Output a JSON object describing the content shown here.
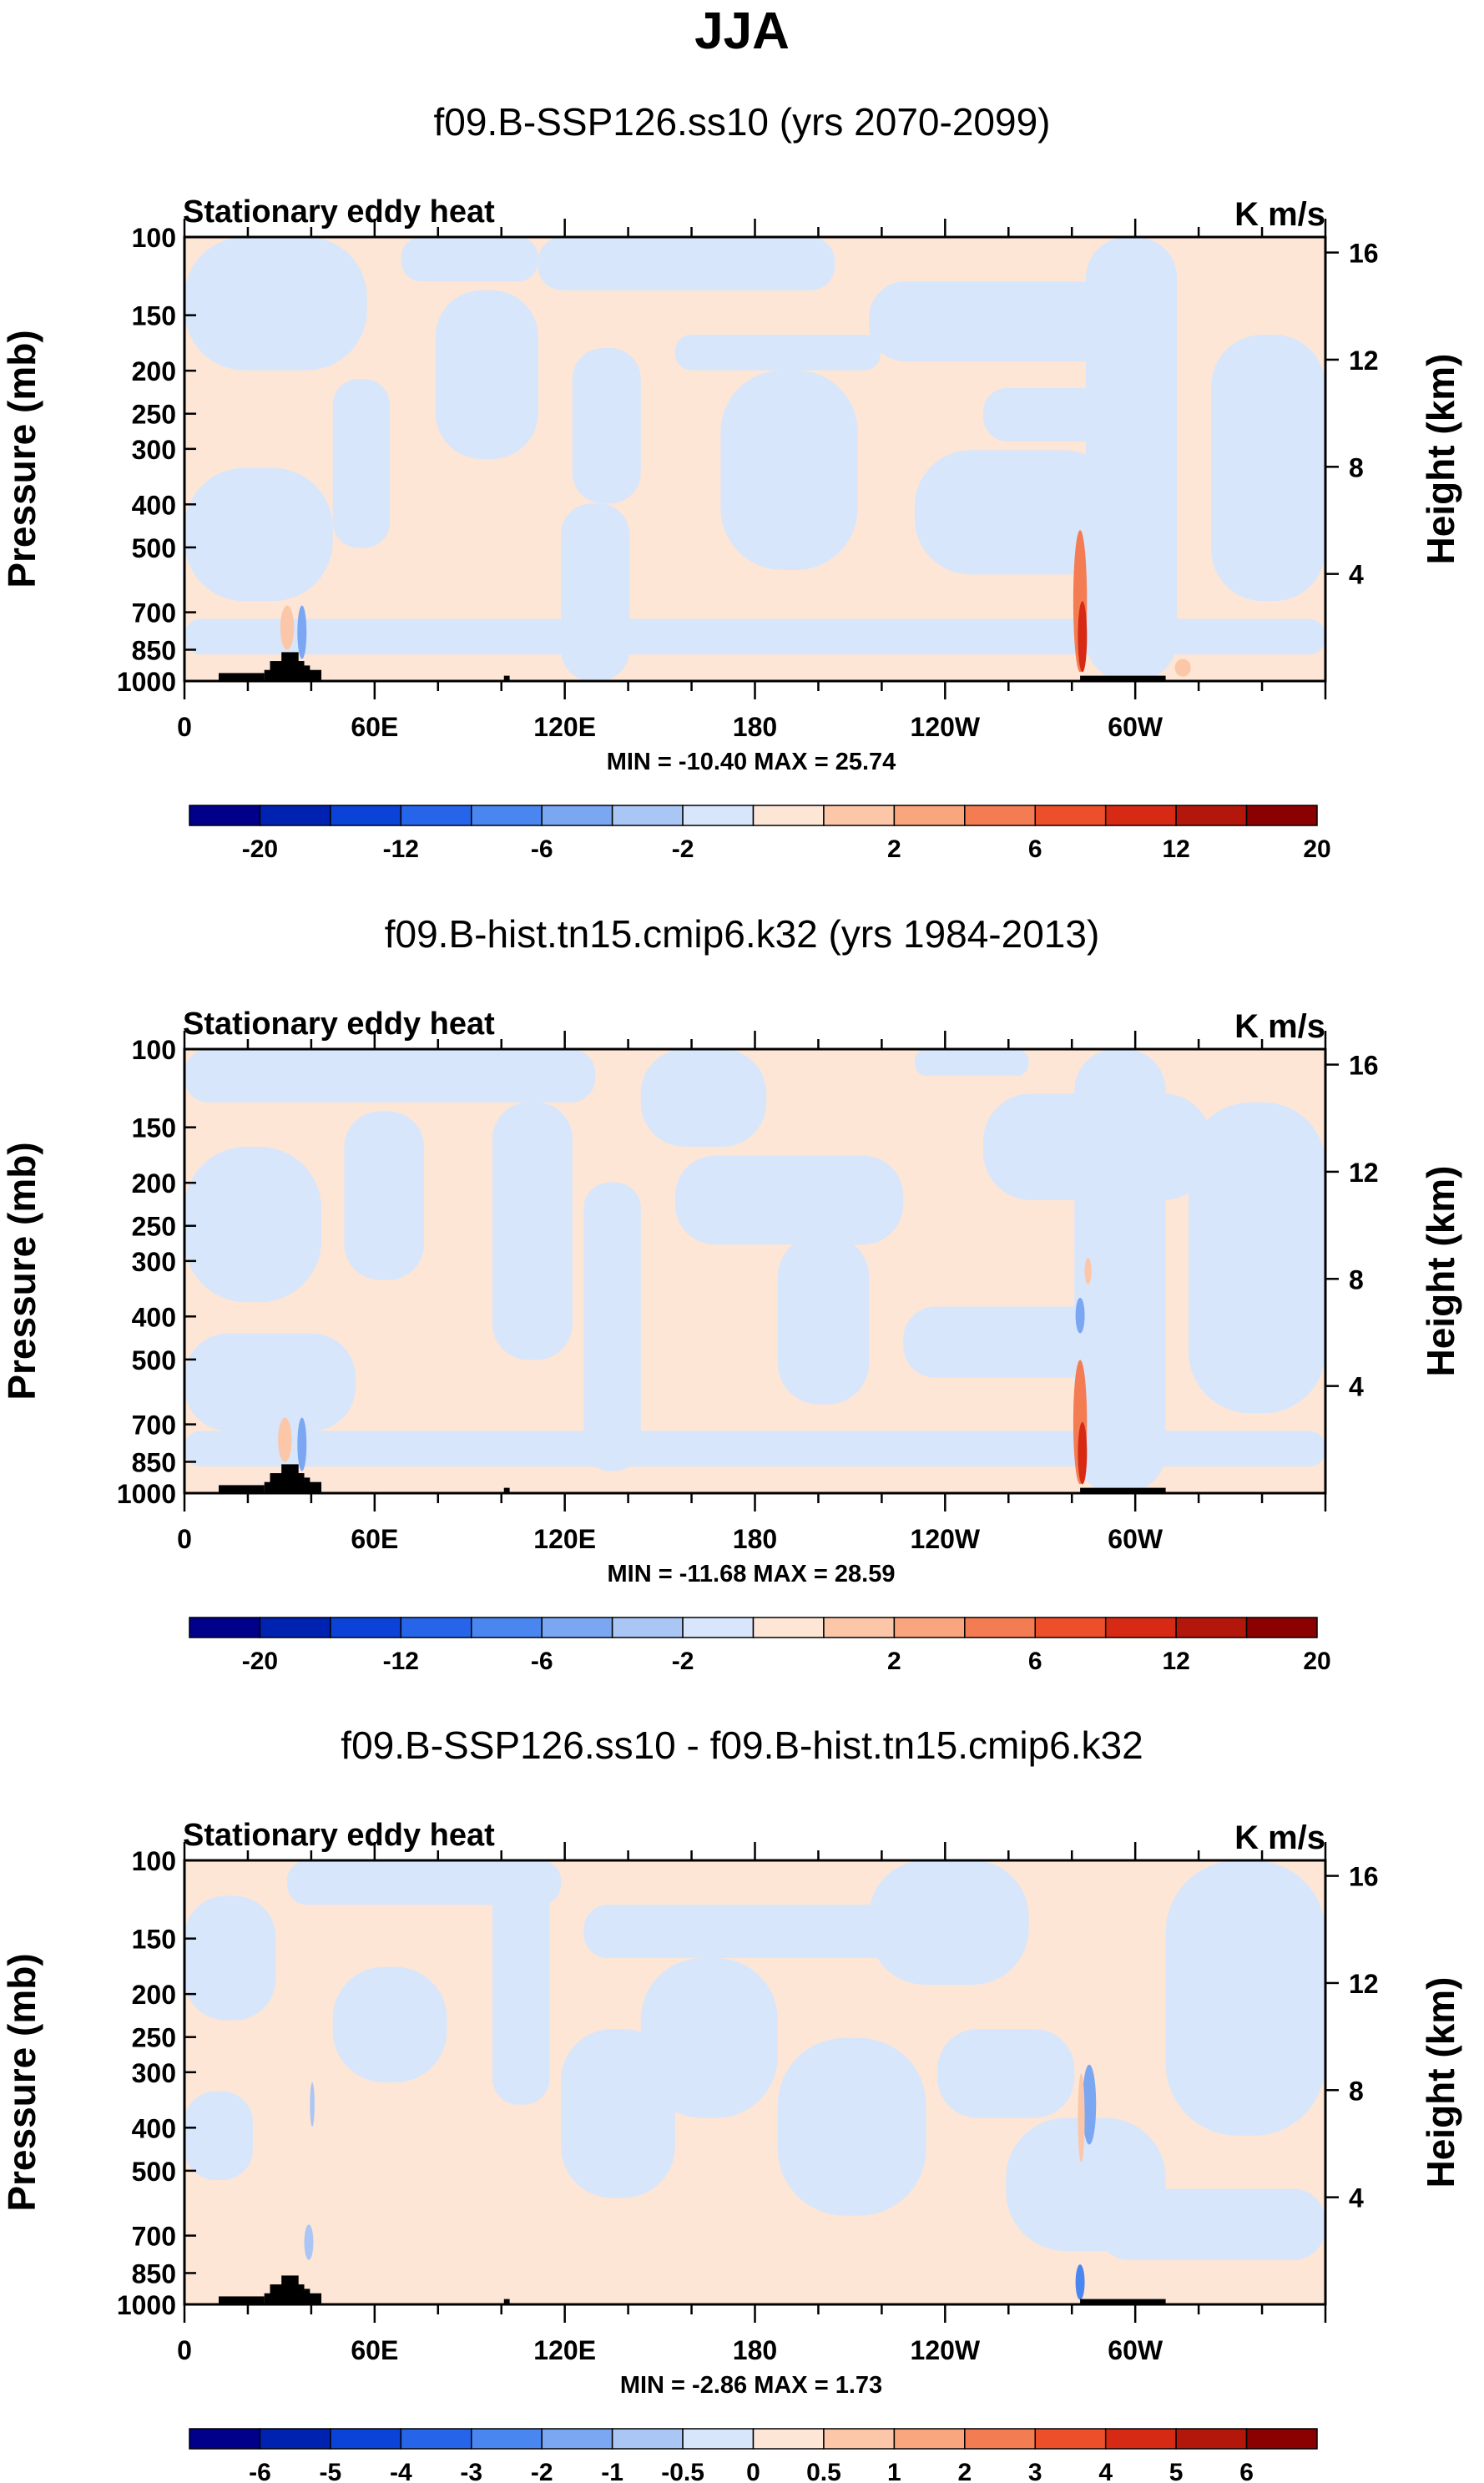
{
  "figure_title": "JJA",
  "colors": {
    "pos_light": "#fde6d6",
    "neg_light": "#d7e6fb",
    "frame": "#000000"
  },
  "chart_data": [
    {
      "type": "heatmap",
      "title": "f09.B-SSP126.ss10 (yrs 2070-2099)",
      "left_label": "Stationary eddy heat",
      "right_label": "K m/s",
      "ylabel": "Pressure (mb)",
      "y2label": "Height (km)",
      "yticks": [
        "100",
        "150",
        "200",
        "250",
        "300",
        "400",
        "500",
        "700",
        "850",
        "1000"
      ],
      "y2ticks": [
        "16",
        "12",
        "8",
        "4"
      ],
      "xticks": [
        "0",
        "60E",
        "120E",
        "180",
        "120W",
        "60W"
      ],
      "stats": "MIN = -10.40   MAX =  25.74",
      "colorbar": {
        "colors": [
          "#00008b",
          "#0022b0",
          "#0b43d8",
          "#2665ea",
          "#4a86f0",
          "#7aa6f2",
          "#a9c6f5",
          "#d7e6fb",
          "#fde6d6",
          "#fcc7a9",
          "#f9a57e",
          "#f47c53",
          "#ee4f2b",
          "#d72a14",
          "#b3170b",
          "#8b0000"
        ],
        "labels": [
          "-20",
          "-12",
          "-6",
          "-2",
          "2",
          "6",
          "12",
          "20"
        ]
      }
    },
    {
      "type": "heatmap",
      "title": "f09.B-hist.tn15.cmip6.k32 (yrs 1984-2013)",
      "left_label": "Stationary eddy heat",
      "right_label": "K m/s",
      "ylabel": "Pressure (mb)",
      "y2label": "Height (km)",
      "yticks": [
        "100",
        "150",
        "200",
        "250",
        "300",
        "400",
        "500",
        "700",
        "850",
        "1000"
      ],
      "y2ticks": [
        "16",
        "12",
        "8",
        "4"
      ],
      "xticks": [
        "0",
        "60E",
        "120E",
        "180",
        "120W",
        "60W"
      ],
      "stats": "MIN = -11.68   MAX =  28.59",
      "colorbar": {
        "colors": [
          "#00008b",
          "#0022b0",
          "#0b43d8",
          "#2665ea",
          "#4a86f0",
          "#7aa6f2",
          "#a9c6f5",
          "#d7e6fb",
          "#fde6d6",
          "#fcc7a9",
          "#f9a57e",
          "#f47c53",
          "#ee4f2b",
          "#d72a14",
          "#b3170b",
          "#8b0000"
        ],
        "labels": [
          "-20",
          "-12",
          "-6",
          "-2",
          "2",
          "6",
          "12",
          "20"
        ]
      }
    },
    {
      "type": "heatmap",
      "title": "f09.B-SSP126.ss10 - f09.B-hist.tn15.cmip6.k32",
      "left_label": "Stationary eddy heat",
      "right_label": "K m/s",
      "ylabel": "Pressure (mb)",
      "y2label": "Height (km)",
      "yticks": [
        "100",
        "150",
        "200",
        "250",
        "300",
        "400",
        "500",
        "700",
        "850",
        "1000"
      ],
      "y2ticks": [
        "16",
        "12",
        "8",
        "4"
      ],
      "xticks": [
        "0",
        "60E",
        "120E",
        "180",
        "120W",
        "60W"
      ],
      "stats": "MIN = -2.86   MAX =  1.73",
      "colorbar": {
        "colors": [
          "#00008b",
          "#0022b0",
          "#0b43d8",
          "#2665ea",
          "#4a86f0",
          "#7aa6f2",
          "#a9c6f5",
          "#d7e6fb",
          "#fde6d6",
          "#fcc7a9",
          "#f9a57e",
          "#f47c53",
          "#ee4f2b",
          "#d72a14",
          "#b3170b",
          "#8b0000"
        ],
        "labels": [
          "-6",
          "-5",
          "-4",
          "-3",
          "-2",
          "-1",
          "-0.5",
          "0",
          "0.5",
          "1",
          "2",
          "3",
          "4",
          "5",
          "6"
        ]
      }
    }
  ]
}
